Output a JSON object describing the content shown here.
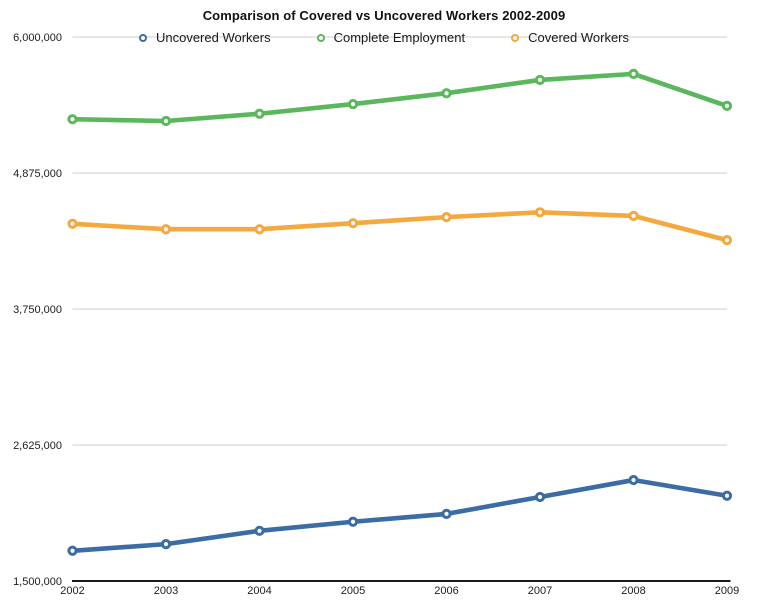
{
  "chart_data": {
    "type": "line",
    "title": "Comparison of Covered vs Uncovered Workers 2002-2009",
    "x": [
      "2002",
      "2003",
      "2004",
      "2005",
      "2006",
      "2007",
      "2008",
      "2009"
    ],
    "series": [
      {
        "name": "Uncovered Workers",
        "color": "#3b6ca5",
        "values": [
          1750000,
          1805000,
          1915000,
          1990000,
          2055000,
          2195000,
          2335000,
          2205000
        ]
      },
      {
        "name": "Complete Employment",
        "color": "#5bb75b",
        "values": [
          5320000,
          5305000,
          5365000,
          5445000,
          5535000,
          5645000,
          5695000,
          5430000
        ]
      },
      {
        "name": "Covered Workers",
        "color": "#f4a83e",
        "values": [
          4455000,
          4410000,
          4410000,
          4460000,
          4510000,
          4550000,
          4520000,
          4320000
        ]
      }
    ],
    "ylim": [
      1500000,
      6000000
    ],
    "yticks": [
      {
        "value": 6000000,
        "label": "6,000,000"
      },
      {
        "value": 4875000,
        "label": "4,875,000"
      },
      {
        "value": 3750000,
        "label": "3,750,000"
      },
      {
        "value": 2625000,
        "label": "2,625,000"
      },
      {
        "value": 1500000,
        "label": "1,500,000"
      }
    ],
    "grid": true,
    "grid_color": "#cccccc",
    "axis_color": "#1a1a1a",
    "legend_position": "top",
    "xlabel": "",
    "ylabel": ""
  }
}
